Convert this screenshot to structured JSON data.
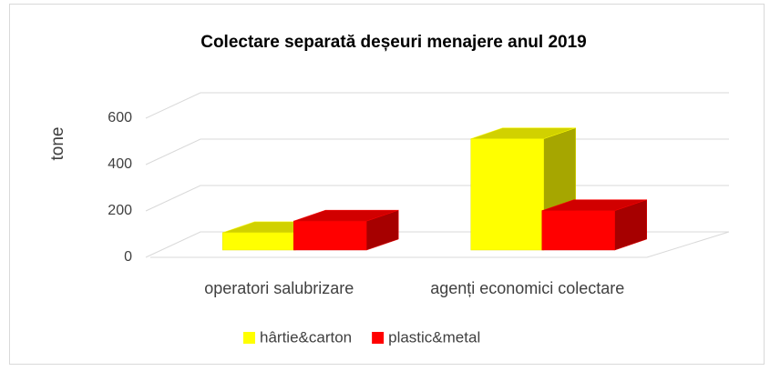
{
  "chart_data": {
    "type": "bar3d",
    "title": "Colectare separată deșeuri menajere anul 2019",
    "y_label": "tone",
    "categories": [
      "operatori salubrizare",
      "agenți economici colectare"
    ],
    "series": [
      {
        "name": "hârtie&carton",
        "color": "#ffff00",
        "values": [
          75,
          480
        ]
      },
      {
        "name": "plastic&metal",
        "color": "#ff0000",
        "values": [
          125,
          170
        ]
      }
    ],
    "ylim": [
      0,
      600
    ],
    "yticks": [
      0,
      200,
      400,
      600
    ],
    "grid": true,
    "legend": "bottom"
  }
}
